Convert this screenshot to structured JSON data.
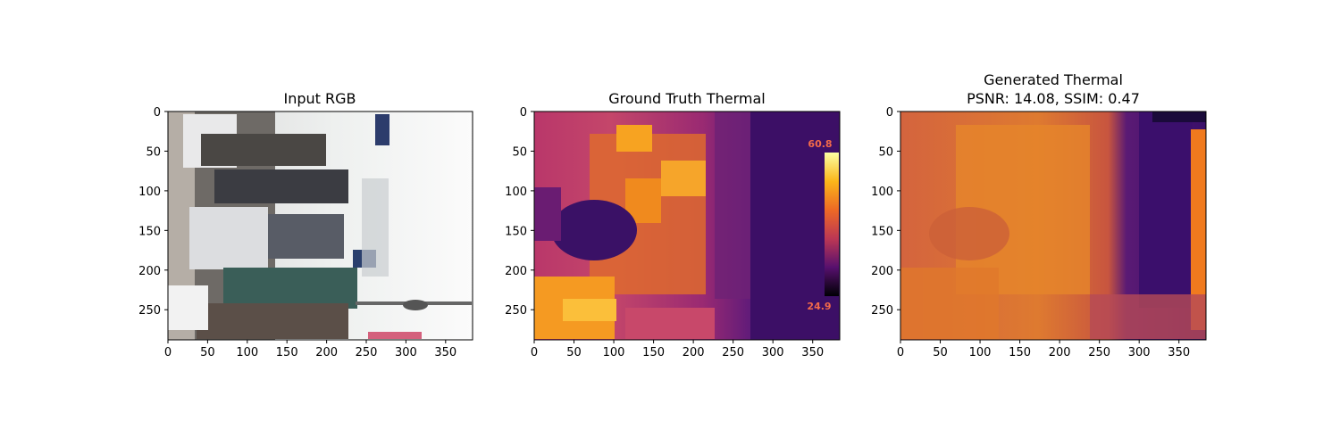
{
  "figure": {
    "panels": [
      {
        "id": "input-rgb",
        "title_lines": [
          "Input RGB"
        ],
        "image_content": "rgb-photo-crowd-market-rotated"
      },
      {
        "id": "ground-truth-thermal",
        "title_lines": [
          "Ground Truth Thermal"
        ],
        "image_content": "thermal-image-inferno-colormap",
        "embedded_colorbar_labels": [
          "60.8",
          "24.9"
        ]
      },
      {
        "id": "generated-thermal",
        "title_lines": [
          "Generated Thermal",
          "PSNR: 14.08, SSIM: 0.47"
        ],
        "image_content": "generated-thermal-image-inferno-colormap"
      }
    ]
  },
  "chart_data": [
    {
      "type": "heatmap",
      "title": "Input RGB",
      "xlim": [
        0,
        384
      ],
      "ylim": [
        288,
        0
      ],
      "y_inverted": true,
      "xticks": [
        0,
        50,
        100,
        150,
        200,
        250,
        300,
        350
      ],
      "yticks": [
        0,
        50,
        100,
        150,
        200,
        250
      ],
      "xlabel": "",
      "ylabel": ""
    },
    {
      "type": "heatmap",
      "title": "Ground Truth Thermal",
      "colormap": "inferno",
      "xlim": [
        0,
        384
      ],
      "ylim": [
        288,
        0
      ],
      "y_inverted": true,
      "xticks": [
        0,
        50,
        100,
        150,
        200,
        250,
        300,
        350
      ],
      "yticks": [
        0,
        50,
        100,
        150,
        200,
        250
      ],
      "xlabel": "",
      "ylabel": ""
    },
    {
      "type": "heatmap",
      "title": "Generated Thermal\nPSNR: 14.08, SSIM: 0.47",
      "colormap": "inferno",
      "psnr": 14.08,
      "ssim": 0.47,
      "xlim": [
        0,
        384
      ],
      "ylim": [
        288,
        0
      ],
      "y_inverted": true,
      "xticks": [
        0,
        50,
        100,
        150,
        200,
        250,
        300,
        350
      ],
      "yticks": [
        0,
        50,
        100,
        150,
        200,
        250
      ],
      "xlabel": "",
      "ylabel": ""
    }
  ],
  "colors": {
    "axis": "#000000",
    "background": "#ffffff",
    "inferno_hot": "#f08a1e",
    "inferno_cold": "#2a0a52",
    "colorbar_label": "#f26a4a"
  }
}
